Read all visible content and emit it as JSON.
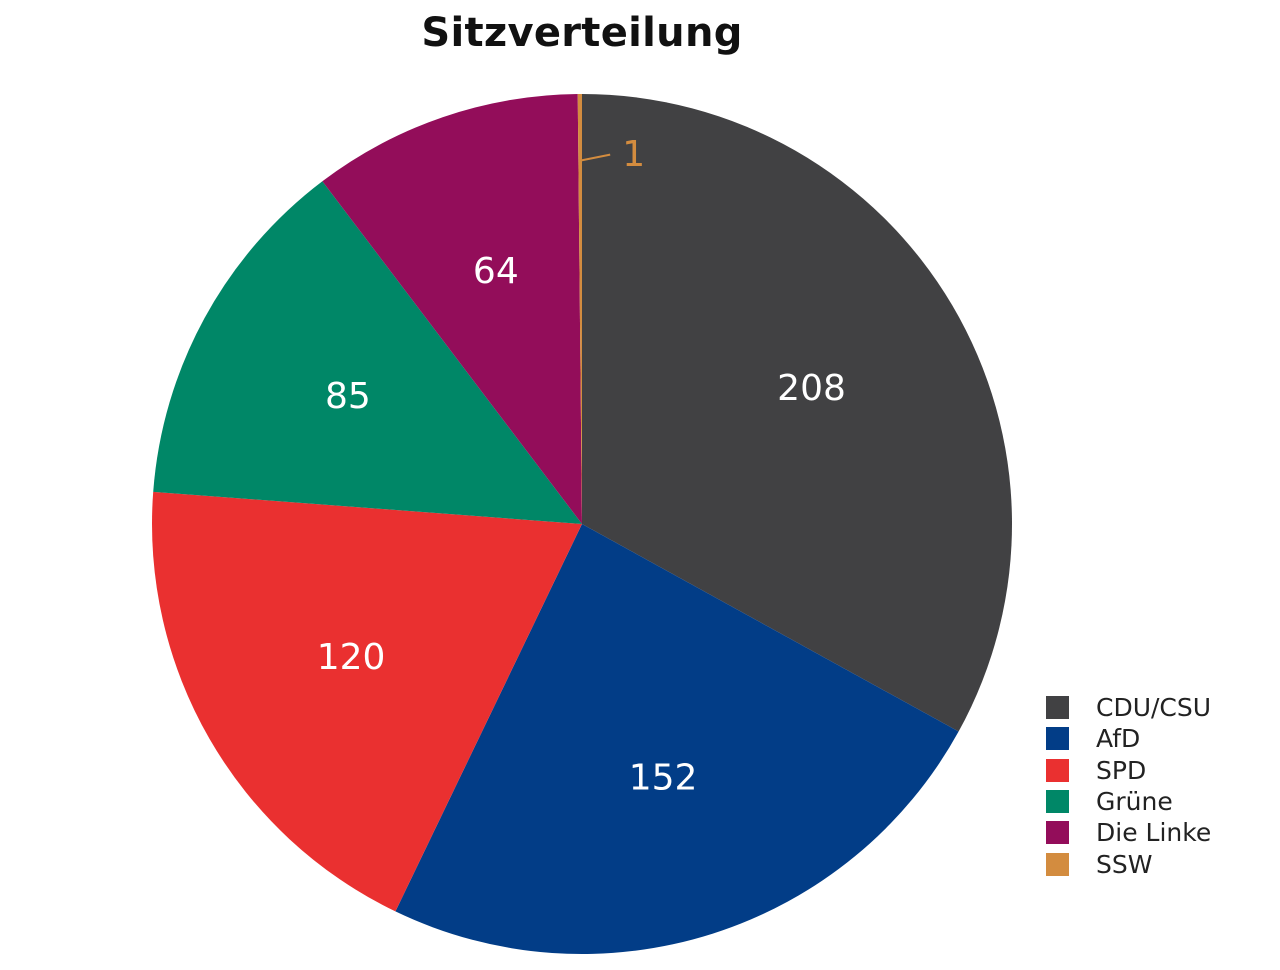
{
  "chart_data": {
    "type": "pie",
    "title": "Sitzverteilung",
    "categories": [
      "CDU/CSU",
      "AfD",
      "SPD",
      "Grüne",
      "Die Linke",
      "SSW"
    ],
    "values": [
      208,
      152,
      120,
      85,
      64,
      1
    ],
    "data_labels": [
      "208",
      "152",
      "120",
      "85",
      "64",
      "1"
    ],
    "colors": [
      "#414143",
      "#023d87",
      "#ea3030",
      "#008767",
      "#930d5a",
      "#d38c3f"
    ],
    "start_angle": "top",
    "direction": "clockwise",
    "legend_position": "bottom-right"
  }
}
